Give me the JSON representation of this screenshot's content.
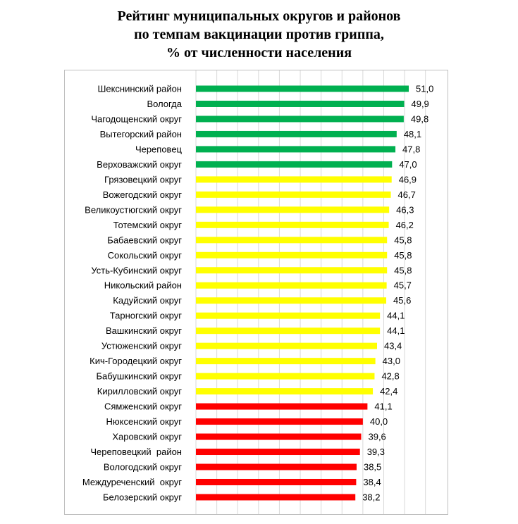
{
  "chart_data": {
    "type": "bar",
    "orientation": "horizontal",
    "title_lines": [
      "Рейтинг муниципальных округов и районов",
      "по темпам вакцинации против гриппа,",
      "% от численности населения"
    ],
    "categories": [
      "Шекснинский район",
      "Вологда",
      "Чагодощенский округ",
      "Вытегорский район",
      "Череповец",
      "Верховажский округ",
      "Грязовецкий округ",
      "Вожегодский округ",
      "Великоустюгский округ",
      "Тотемский округ",
      "Бабаевский округ",
      "Сокольский округ",
      "Усть-Кубинский округ",
      "Никольский район",
      "Кадуйский округ",
      "Тарногский округ",
      "Вашкинский округ",
      "Устюженский округ",
      "Кич-Городецкий округ",
      "Бабушкинский округ",
      "Кирилловский округ",
      "Сямженский округ",
      "Нюксенский округ",
      "Харовский округ",
      "Череповецкий  район",
      "Вологодский округ",
      "Междуреченский  округ",
      "Белозерский округ"
    ],
    "values": [
      51.0,
      49.9,
      49.8,
      48.1,
      47.8,
      47.0,
      46.9,
      46.7,
      46.3,
      46.2,
      45.8,
      45.8,
      45.8,
      45.7,
      45.6,
      44.1,
      44.1,
      43.4,
      43.0,
      42.8,
      42.4,
      41.1,
      40.0,
      39.6,
      39.3,
      38.5,
      38.4,
      38.2
    ],
    "value_labels": [
      "51,0",
      "49,9",
      "49,8",
      "48,1",
      "47,8",
      "47,0",
      "46,9",
      "46,7",
      "46,3",
      "46,2",
      "45,8",
      "45,8",
      "45,8",
      "45,7",
      "45,6",
      "44,1",
      "44,1",
      "43,4",
      "43,0",
      "42,8",
      "42,4",
      "41,1",
      "40,0",
      "39,6",
      "39,3",
      "38,5",
      "38,4",
      "38,2"
    ],
    "bar_colors": [
      "#00b050",
      "#00b050",
      "#00b050",
      "#00b050",
      "#00b050",
      "#00b050",
      "#ffff00",
      "#ffff00",
      "#ffff00",
      "#ffff00",
      "#ffff00",
      "#ffff00",
      "#ffff00",
      "#ffff00",
      "#ffff00",
      "#ffff00",
      "#ffff00",
      "#ffff00",
      "#ffff00",
      "#ffff00",
      "#ffff00",
      "#ff0000",
      "#ff0000",
      "#ff0000",
      "#ff0000",
      "#ff0000",
      "#ff0000",
      "#ff0000"
    ],
    "xlim": [
      0,
      55
    ],
    "grid": "vertical",
    "gridline_color": "#d9d9d9",
    "legend": "none"
  }
}
